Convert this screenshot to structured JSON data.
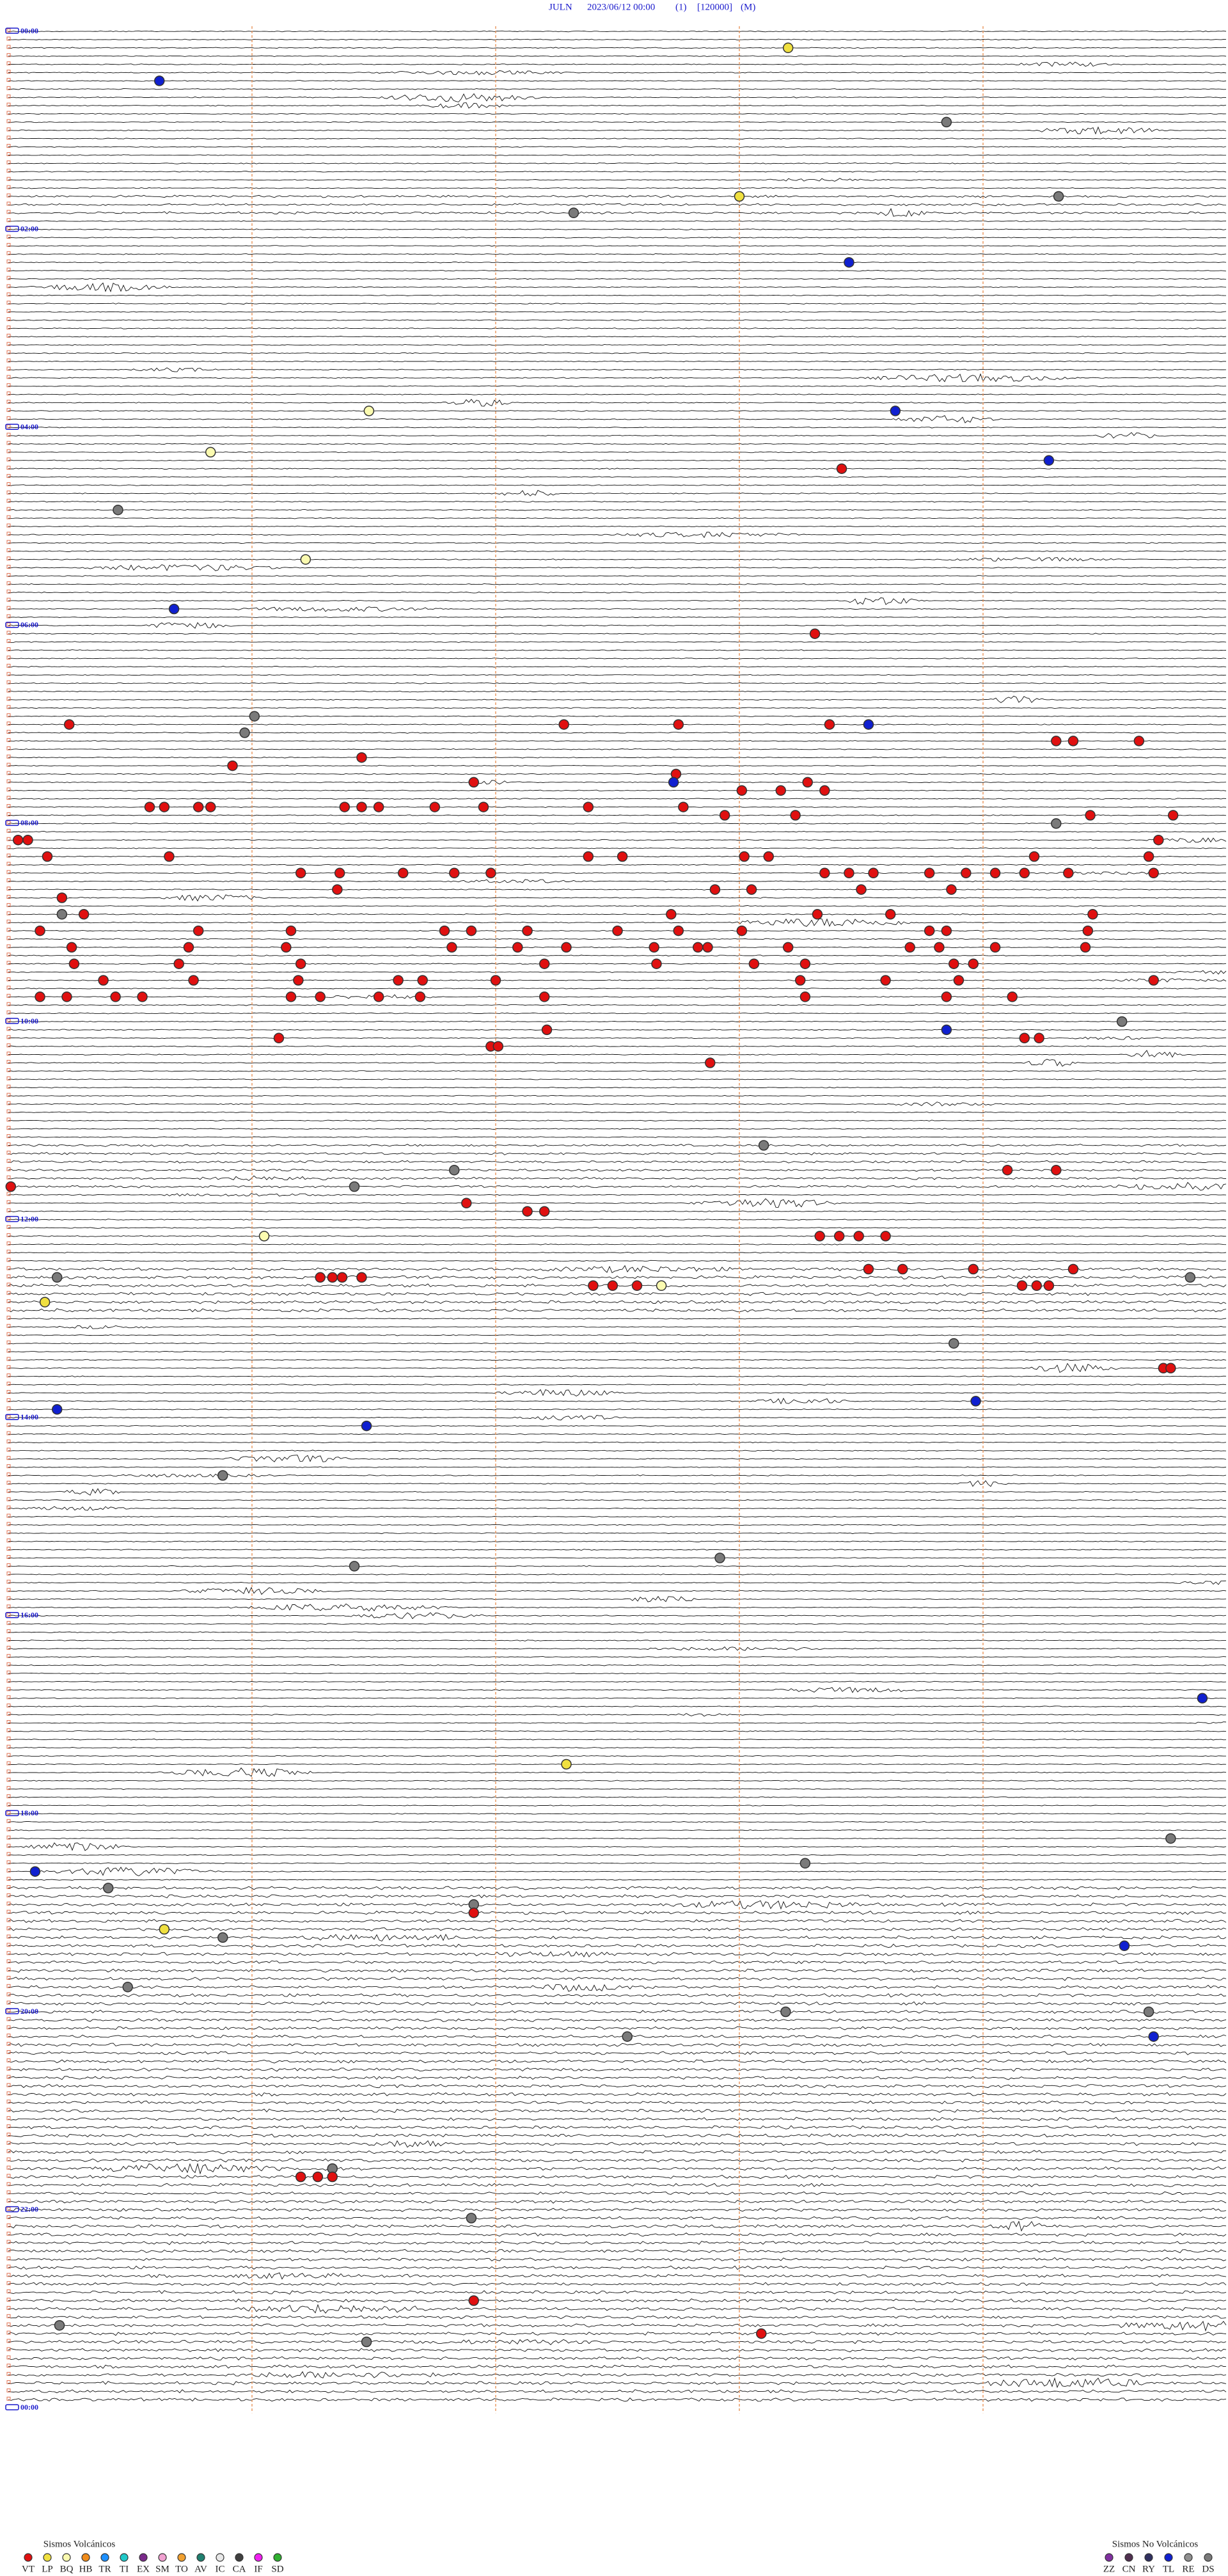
{
  "header": {
    "station": "JULN",
    "datetime": "2023/06/12 00:00",
    "channel": "(1)",
    "scale": "[120000]",
    "mode": "(M)"
  },
  "time_labels": [
    "00:00",
    "02:00",
    "04:00",
    "06:00",
    "08:00",
    "10:00",
    "12:00",
    "14:00",
    "16:00",
    "18:00",
    "20:00",
    "22:00",
    "00:00"
  ],
  "legend_volcanic": {
    "title": "Sismos Volcánicos",
    "items": [
      {
        "code": "VT",
        "color": "#e01010"
      },
      {
        "code": "LP",
        "color": "#f0e040"
      },
      {
        "code": "BQ",
        "color": "#fbfbb0"
      },
      {
        "code": "HB",
        "color": "#f08c1c"
      },
      {
        "code": "TR",
        "color": "#1e90ff"
      },
      {
        "code": "TI",
        "color": "#20c8c8"
      },
      {
        "code": "EX",
        "color": "#7a2a8a"
      },
      {
        "code": "SM",
        "color": "#f0a0d0"
      },
      {
        "code": "TO",
        "color": "#f0a030"
      },
      {
        "code": "AV",
        "color": "#208070"
      },
      {
        "code": "IC",
        "color": "#e8e8e8"
      },
      {
        "code": "CA",
        "color": "#404040"
      },
      {
        "code": "IF",
        "color": "#f020f0"
      },
      {
        "code": "SD",
        "color": "#30b030"
      }
    ]
  },
  "legend_nonvolcanic": {
    "title": "Sismos No Volcánicos",
    "items": [
      {
        "code": "ZZ",
        "color": "#8030a0"
      },
      {
        "code": "CN",
        "color": "#503050"
      },
      {
        "code": "RY",
        "color": "#303060"
      },
      {
        "code": "TL",
        "color": "#1020d0"
      },
      {
        "code": "RE",
        "color": "#909090"
      },
      {
        "code": "DS",
        "color": "#7a7a7a"
      }
    ]
  },
  "events": [
    {
      "row": 2,
      "minute": 3.2,
      "type": "LP"
    },
    {
      "row": 6,
      "minute": 0.62,
      "type": "TL"
    },
    {
      "row": 11,
      "minute": 3.85,
      "type": "DS"
    },
    {
      "row": 20,
      "minute": 3.0,
      "type": "LP"
    },
    {
      "row": 20,
      "minute": 4.31,
      "type": "DS"
    },
    {
      "row": 22,
      "minute": 2.32,
      "type": "DS"
    },
    {
      "row": 28,
      "minute": 3.45,
      "type": "TL"
    },
    {
      "row": 46,
      "minute": 1.48,
      "type": "BQ"
    },
    {
      "row": 46,
      "minute": 3.64,
      "type": "TL"
    },
    {
      "row": 51,
      "minute": 0.83,
      "type": "BQ"
    },
    {
      "row": 52,
      "minute": 4.27,
      "type": "TL"
    },
    {
      "row": 53,
      "minute": 3.42,
      "type": "VT"
    },
    {
      "row": 58,
      "minute": 0.45,
      "type": "DS"
    },
    {
      "row": 64,
      "minute": 1.22,
      "type": "BQ"
    },
    {
      "row": 70,
      "minute": 0.68,
      "type": "TL"
    },
    {
      "row": 73,
      "minute": 3.31,
      "type": "VT"
    },
    {
      "row": 83,
      "minute": 1.01,
      "type": "DS"
    },
    {
      "row": 84,
      "minute": 0.25,
      "type": "VT"
    },
    {
      "row": 84,
      "minute": 2.28,
      "type": "VT"
    },
    {
      "row": 84,
      "minute": 2.75,
      "type": "VT"
    },
    {
      "row": 84,
      "minute": 3.37,
      "type": "VT"
    },
    {
      "row": 84,
      "minute": 3.53,
      "type": "TL"
    },
    {
      "row": 85,
      "minute": 0.97,
      "type": "DS"
    },
    {
      "row": 86,
      "minute": 4.3,
      "type": "VT"
    },
    {
      "row": 86,
      "minute": 4.37,
      "type": "VT"
    },
    {
      "row": 86,
      "minute": 4.64,
      "type": "VT"
    },
    {
      "row": 88,
      "minute": 1.45,
      "type": "VT"
    },
    {
      "row": 89,
      "minute": 0.92,
      "type": "VT"
    },
    {
      "row": 90,
      "minute": 2.74,
      "type": "VT"
    },
    {
      "row": 91,
      "minute": 2.73,
      "type": "TL"
    },
    {
      "row": 91,
      "minute": 3.28,
      "type": "VT"
    },
    {
      "row": 91,
      "minute": 1.91,
      "type": "VT"
    },
    {
      "row": 92,
      "minute": 3.01,
      "type": "VT"
    },
    {
      "row": 92,
      "minute": 3.17,
      "type": "VT"
    },
    {
      "row": 92,
      "minute": 3.35,
      "type": "VT"
    },
    {
      "row": 94,
      "minute": 0.58,
      "type": "VT"
    },
    {
      "row": 94,
      "minute": 0.64,
      "type": "VT"
    },
    {
      "row": 94,
      "minute": 0.78,
      "type": "VT"
    },
    {
      "row": 94,
      "minute": 0.83,
      "type": "VT"
    },
    {
      "row": 94,
      "minute": 1.38,
      "type": "VT"
    },
    {
      "row": 94,
      "minute": 1.45,
      "type": "VT"
    },
    {
      "row": 94,
      "minute": 1.52,
      "type": "VT"
    },
    {
      "row": 94,
      "minute": 1.75,
      "type": "VT"
    },
    {
      "row": 94,
      "minute": 1.95,
      "type": "VT"
    },
    {
      "row": 94,
      "minute": 2.38,
      "type": "VT"
    },
    {
      "row": 94,
      "minute": 2.77,
      "type": "VT"
    },
    {
      "row": 95,
      "minute": 2.94,
      "type": "VT"
    },
    {
      "row": 95,
      "minute": 3.23,
      "type": "VT"
    },
    {
      "row": 96,
      "minute": 4.3,
      "type": "DS"
    },
    {
      "row": 95,
      "minute": 4.44,
      "type": "VT"
    },
    {
      "row": 95,
      "minute": 4.78,
      "type": "VT"
    },
    {
      "row": 98,
      "minute": 0.04,
      "type": "VT"
    },
    {
      "row": 98,
      "minute": 0.08,
      "type": "VT"
    },
    {
      "row": 98,
      "minute": 4.72,
      "type": "VT"
    },
    {
      "row": 100,
      "minute": 0.16,
      "type": "VT"
    },
    {
      "row": 100,
      "minute": 0.66,
      "type": "VT"
    },
    {
      "row": 100,
      "minute": 2.38,
      "type": "VT"
    },
    {
      "row": 100,
      "minute": 2.52,
      "type": "VT"
    },
    {
      "row": 100,
      "minute": 3.02,
      "type": "VT"
    },
    {
      "row": 100,
      "minute": 3.12,
      "type": "VT"
    },
    {
      "row": 100,
      "minute": 4.21,
      "type": "VT"
    },
    {
      "row": 100,
      "minute": 4.68,
      "type": "VT"
    },
    {
      "row": 102,
      "minute": 1.2,
      "type": "VT"
    },
    {
      "row": 102,
      "minute": 1.36,
      "type": "VT"
    },
    {
      "row": 102,
      "minute": 1.62,
      "type": "VT"
    },
    {
      "row": 102,
      "minute": 1.83,
      "type": "VT"
    },
    {
      "row": 102,
      "minute": 1.98,
      "type": "VT"
    },
    {
      "row": 102,
      "minute": 3.35,
      "type": "VT"
    },
    {
      "row": 102,
      "minute": 3.45,
      "type": "VT"
    },
    {
      "row": 102,
      "minute": 3.55,
      "type": "VT"
    },
    {
      "row": 102,
      "minute": 3.78,
      "type": "VT"
    },
    {
      "row": 102,
      "minute": 3.93,
      "type": "VT"
    },
    {
      "row": 102,
      "minute": 4.05,
      "type": "VT"
    },
    {
      "row": 102,
      "minute": 4.17,
      "type": "VT"
    },
    {
      "row": 102,
      "minute": 4.35,
      "type": "VT"
    },
    {
      "row": 102,
      "minute": 4.7,
      "type": "VT"
    },
    {
      "row": 104,
      "minute": 1.35,
      "type": "VT"
    },
    {
      "row": 104,
      "minute": 2.9,
      "type": "VT"
    },
    {
      "row": 104,
      "minute": 3.05,
      "type": "VT"
    },
    {
      "row": 104,
      "minute": 3.5,
      "type": "VT"
    },
    {
      "row": 104,
      "minute": 3.87,
      "type": "VT"
    },
    {
      "row": 105,
      "minute": 0.22,
      "type": "VT"
    },
    {
      "row": 107,
      "minute": 0.22,
      "type": "DS"
    },
    {
      "row": 107,
      "minute": 0.31,
      "type": "VT"
    },
    {
      "row": 107,
      "minute": 2.72,
      "type": "VT"
    },
    {
      "row": 107,
      "minute": 3.32,
      "type": "VT"
    },
    {
      "row": 107,
      "minute": 3.62,
      "type": "VT"
    },
    {
      "row": 107,
      "minute": 4.45,
      "type": "VT"
    },
    {
      "row": 109,
      "minute": 0.13,
      "type": "VT"
    },
    {
      "row": 109,
      "minute": 0.78,
      "type": "VT"
    },
    {
      "row": 109,
      "minute": 1.16,
      "type": "VT"
    },
    {
      "row": 109,
      "minute": 1.79,
      "type": "VT"
    },
    {
      "row": 109,
      "minute": 1.9,
      "type": "VT"
    },
    {
      "row": 109,
      "minute": 2.13,
      "type": "VT"
    },
    {
      "row": 109,
      "minute": 2.5,
      "type": "VT"
    },
    {
      "row": 109,
      "minute": 2.75,
      "type": "VT"
    },
    {
      "row": 109,
      "minute": 3.01,
      "type": "VT"
    },
    {
      "row": 109,
      "minute": 3.78,
      "type": "VT"
    },
    {
      "row": 109,
      "minute": 3.85,
      "type": "VT"
    },
    {
      "row": 109,
      "minute": 4.43,
      "type": "VT"
    },
    {
      "row": 111,
      "minute": 0.26,
      "type": "VT"
    },
    {
      "row": 111,
      "minute": 0.74,
      "type": "VT"
    },
    {
      "row": 111,
      "minute": 1.14,
      "type": "VT"
    },
    {
      "row": 111,
      "minute": 1.82,
      "type": "VT"
    },
    {
      "row": 111,
      "minute": 2.09,
      "type": "VT"
    },
    {
      "row": 111,
      "minute": 2.29,
      "type": "VT"
    },
    {
      "row": 111,
      "minute": 2.65,
      "type": "VT"
    },
    {
      "row": 111,
      "minute": 2.83,
      "type": "VT"
    },
    {
      "row": 111,
      "minute": 2.87,
      "type": "VT"
    },
    {
      "row": 111,
      "minute": 3.2,
      "type": "VT"
    },
    {
      "row": 111,
      "minute": 3.7,
      "type": "VT"
    },
    {
      "row": 111,
      "minute": 3.82,
      "type": "VT"
    },
    {
      "row": 111,
      "minute": 4.05,
      "type": "VT"
    },
    {
      "row": 111,
      "minute": 4.42,
      "type": "VT"
    },
    {
      "row": 113,
      "minute": 0.27,
      "type": "VT"
    },
    {
      "row": 113,
      "minute": 0.7,
      "type": "VT"
    },
    {
      "row": 113,
      "minute": 1.2,
      "type": "VT"
    },
    {
      "row": 113,
      "minute": 2.2,
      "type": "VT"
    },
    {
      "row": 113,
      "minute": 2.66,
      "type": "VT"
    },
    {
      "row": 113,
      "minute": 3.06,
      "type": "VT"
    },
    {
      "row": 113,
      "minute": 3.27,
      "type": "VT"
    },
    {
      "row": 113,
      "minute": 3.88,
      "type": "VT"
    },
    {
      "row": 113,
      "minute": 3.96,
      "type": "VT"
    },
    {
      "row": 115,
      "minute": 0.39,
      "type": "VT"
    },
    {
      "row": 115,
      "minute": 0.76,
      "type": "VT"
    },
    {
      "row": 115,
      "minute": 1.19,
      "type": "VT"
    },
    {
      "row": 115,
      "minute": 1.6,
      "type": "VT"
    },
    {
      "row": 115,
      "minute": 1.7,
      "type": "VT"
    },
    {
      "row": 115,
      "minute": 2.0,
      "type": "VT"
    },
    {
      "row": 115,
      "minute": 3.25,
      "type": "VT"
    },
    {
      "row": 115,
      "minute": 3.6,
      "type": "VT"
    },
    {
      "row": 115,
      "minute": 3.9,
      "type": "VT"
    },
    {
      "row": 115,
      "minute": 4.7,
      "type": "VT"
    },
    {
      "row": 117,
      "minute": 0.13,
      "type": "VT"
    },
    {
      "row": 117,
      "minute": 0.24,
      "type": "VT"
    },
    {
      "row": 117,
      "minute": 0.44,
      "type": "VT"
    },
    {
      "row": 117,
      "minute": 0.55,
      "type": "VT"
    },
    {
      "row": 117,
      "minute": 1.16,
      "type": "VT"
    },
    {
      "row": 117,
      "minute": 1.28,
      "type": "VT"
    },
    {
      "row": 117,
      "minute": 1.52,
      "type": "VT"
    },
    {
      "row": 117,
      "minute": 1.69,
      "type": "VT"
    },
    {
      "row": 117,
      "minute": 2.2,
      "type": "VT"
    },
    {
      "row": 117,
      "minute": 3.27,
      "type": "VT"
    },
    {
      "row": 117,
      "minute": 3.85,
      "type": "VT"
    },
    {
      "row": 117,
      "minute": 4.12,
      "type": "VT"
    },
    {
      "row": 120,
      "minute": 4.57,
      "type": "DS"
    },
    {
      "row": 121,
      "minute": 3.85,
      "type": "TL"
    },
    {
      "row": 121,
      "minute": 2.21,
      "type": "VT"
    },
    {
      "row": 122,
      "minute": 1.11,
      "type": "VT"
    },
    {
      "row": 122,
      "minute": 4.17,
      "type": "VT"
    },
    {
      "row": 122,
      "minute": 4.23,
      "type": "VT"
    },
    {
      "row": 123,
      "minute": 1.98,
      "type": "VT"
    },
    {
      "row": 123,
      "minute": 2.01,
      "type": "VT"
    },
    {
      "row": 125,
      "minute": 2.88,
      "type": "VT"
    },
    {
      "row": 135,
      "minute": 3.1,
      "type": "DS"
    },
    {
      "row": 138,
      "minute": 1.83,
      "type": "DS"
    },
    {
      "row": 140,
      "minute": 1.42,
      "type": "DS"
    },
    {
      "row": 140,
      "minute": 0.01,
      "type": "VT"
    },
    {
      "row": 138,
      "minute": 4.1,
      "type": "VT"
    },
    {
      "row": 138,
      "minute": 4.3,
      "type": "VT"
    },
    {
      "row": 142,
      "minute": 1.88,
      "type": "VT"
    },
    {
      "row": 143,
      "minute": 2.13,
      "type": "VT"
    },
    {
      "row": 143,
      "minute": 2.2,
      "type": "VT"
    },
    {
      "row": 146,
      "minute": 1.05,
      "type": "BQ"
    },
    {
      "row": 146,
      "minute": 3.33,
      "type": "VT"
    },
    {
      "row": 146,
      "minute": 3.41,
      "type": "VT"
    },
    {
      "row": 146,
      "minute": 3.49,
      "type": "VT"
    },
    {
      "row": 146,
      "minute": 3.6,
      "type": "VT"
    },
    {
      "row": 150,
      "minute": 3.53,
      "type": "VT"
    },
    {
      "row": 150,
      "minute": 3.67,
      "type": "VT"
    },
    {
      "row": 150,
      "minute": 3.96,
      "type": "VT"
    },
    {
      "row": 150,
      "minute": 4.37,
      "type": "VT"
    },
    {
      "row": 151,
      "minute": 1.28,
      "type": "VT"
    },
    {
      "row": 151,
      "minute": 1.33,
      "type": "VT"
    },
    {
      "row": 151,
      "minute": 1.37,
      "type": "VT"
    },
    {
      "row": 151,
      "minute": 1.45,
      "type": "VT"
    },
    {
      "row": 151,
      "minute": 0.2,
      "type": "DS"
    },
    {
      "row": 151,
      "minute": 4.85,
      "type": "DS"
    },
    {
      "row": 152,
      "minute": 2.4,
      "type": "VT"
    },
    {
      "row": 152,
      "minute": 2.48,
      "type": "VT"
    },
    {
      "row": 152,
      "minute": 2.58,
      "type": "VT"
    },
    {
      "row": 152,
      "minute": 2.68,
      "type": "BQ"
    },
    {
      "row": 152,
      "minute": 4.16,
      "type": "VT"
    },
    {
      "row": 152,
      "minute": 4.22,
      "type": "VT"
    },
    {
      "row": 152,
      "minute": 4.27,
      "type": "VT"
    },
    {
      "row": 154,
      "minute": 0.15,
      "type": "LP"
    },
    {
      "row": 159,
      "minute": 3.88,
      "type": "DS"
    },
    {
      "row": 162,
      "minute": 4.74,
      "type": "VT"
    },
    {
      "row": 162,
      "minute": 4.77,
      "type": "VT"
    },
    {
      "row": 166,
      "minute": 3.97,
      "type": "TL"
    },
    {
      "row": 167,
      "minute": 0.2,
      "type": "TL"
    },
    {
      "row": 169,
      "minute": 1.47,
      "type": "TL"
    },
    {
      "row": 175,
      "minute": 0.88,
      "type": "DS"
    },
    {
      "row": 185,
      "minute": 2.92,
      "type": "DS"
    },
    {
      "row": 186,
      "minute": 1.42,
      "type": "DS"
    },
    {
      "row": 202,
      "minute": 4.9,
      "type": "TL"
    },
    {
      "row": 210,
      "minute": 2.29,
      "type": "LP"
    },
    {
      "row": 219,
      "minute": 4.77,
      "type": "DS"
    },
    {
      "row": 222,
      "minute": 3.27,
      "type": "DS"
    },
    {
      "row": 223,
      "minute": 0.11,
      "type": "TL"
    },
    {
      "row": 225,
      "minute": 0.41,
      "type": "DS"
    },
    {
      "row": 227,
      "minute": 1.91,
      "type": "DS"
    },
    {
      "row": 228,
      "minute": 1.91,
      "type": "VT"
    },
    {
      "row": 230,
      "minute": 0.64,
      "type": "LP"
    },
    {
      "row": 231,
      "minute": 0.88,
      "type": "DS"
    },
    {
      "row": 232,
      "minute": 4.58,
      "type": "TL"
    },
    {
      "row": 237,
      "minute": 0.49,
      "type": "DS"
    },
    {
      "row": 240,
      "minute": 3.19,
      "type": "DS"
    },
    {
      "row": 240,
      "minute": 4.68,
      "type": "DS"
    },
    {
      "row": 243,
      "minute": 2.54,
      "type": "DS"
    },
    {
      "row": 243,
      "minute": 4.7,
      "type": "TL"
    },
    {
      "row": 259,
      "minute": 1.33,
      "type": "DS"
    },
    {
      "row": 260,
      "minute": 1.2,
      "type": "VT"
    },
    {
      "row": 260,
      "minute": 1.27,
      "type": "VT"
    },
    {
      "row": 260,
      "minute": 1.33,
      "type": "VT"
    },
    {
      "row": 265,
      "minute": 1.9,
      "type": "DS"
    },
    {
      "row": 275,
      "minute": 1.91,
      "type": "VT"
    },
    {
      "row": 278,
      "minute": 0.21,
      "type": "DS"
    },
    {
      "row": 279,
      "minute": 3.09,
      "type": "VT"
    },
    {
      "row": 280,
      "minute": 1.47,
      "type": "DS"
    }
  ]
}
